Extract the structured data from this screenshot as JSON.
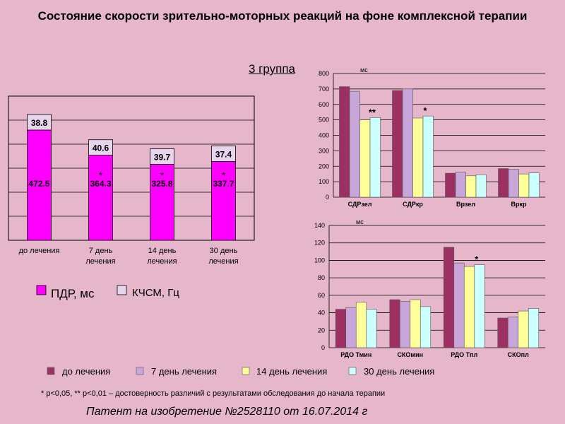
{
  "title": "Состояние скорости зрительно-моторных реакций на фоне комплексной терапии",
  "group_label": "3 группа",
  "footnote": "* p<0,05, ** p<0,01 – достоверность различий с результатами обследования до начала терапии",
  "patent": "Патент на изобретение №2528110 от 16.07.2014 г",
  "colors": {
    "pdr": "#ff00ff",
    "kchsm": "#e6d5ec",
    "before": "#9d3063",
    "day7": "#c9a6d9",
    "day14": "#ffff99",
    "day30": "#ccffff"
  },
  "chart_data": [
    {
      "id": "left",
      "type": "bar",
      "stacked": true,
      "categories": [
        "до лечения",
        "7 день лечения",
        "14 день лечения",
        "30 день лечения"
      ],
      "series": [
        {
          "name": "ПДР, мс",
          "values": [
            472.5,
            364.3,
            325.8,
            337.7
          ],
          "labels": [
            "472.5",
            "364.3",
            "325.8",
            "337.7"
          ],
          "marks": [
            "",
            "*",
            "*",
            "*"
          ]
        },
        {
          "name": "КЧСМ, Гц",
          "values": [
            38.8,
            40.6,
            39.7,
            37.4
          ],
          "labels": [
            "38.8",
            "40.6",
            "39.7",
            "37.4"
          ]
        }
      ],
      "grid": true,
      "legend": "bottom"
    },
    {
      "id": "top_right",
      "type": "bar",
      "unit": "мс",
      "categories": [
        "СДРзел",
        "СДРкр",
        "Врзел",
        "Вркр"
      ],
      "series": [
        {
          "name": "до лечения",
          "values": [
            715,
            690,
            155,
            185
          ]
        },
        {
          "name": "7 день лечения",
          "values": [
            685,
            700,
            162,
            180
          ]
        },
        {
          "name": "14 день лечения",
          "values": [
            500,
            512,
            138,
            150
          ]
        },
        {
          "name": "30 день лечения",
          "values": [
            515,
            525,
            145,
            157
          ]
        }
      ],
      "annotations": [
        {
          "category": "СДРзел",
          "text": "**"
        },
        {
          "category": "СДРкр",
          "text": "*"
        }
      ],
      "ylim": [
        0,
        800
      ],
      "yticks": [
        0,
        100,
        200,
        300,
        400,
        500,
        600,
        700,
        800
      ],
      "grid": true
    },
    {
      "id": "bottom_right",
      "type": "bar",
      "unit": "мс",
      "categories": [
        "РДО Тмин",
        "СКОмин",
        "РДО Тпл",
        "СКОпл"
      ],
      "series": [
        {
          "name": "до лечения",
          "values": [
            44,
            55,
            115,
            34
          ]
        },
        {
          "name": "7 день лечения",
          "values": [
            46,
            53,
            97,
            35
          ]
        },
        {
          "name": "14 день лечения",
          "values": [
            52,
            55,
            93,
            42
          ]
        },
        {
          "name": "30 день лечения",
          "values": [
            44,
            47,
            95,
            45
          ]
        }
      ],
      "annotations": [
        {
          "category": "РДО Тпл",
          "text": "*"
        }
      ],
      "ylim": [
        0,
        140
      ],
      "yticks": [
        0,
        20,
        40,
        60,
        80,
        100,
        120,
        140
      ],
      "grid": true
    }
  ],
  "right_legend": {
    "items": [
      "до лечения",
      "7 день лечения",
      "14 день лечения",
      "30 день лечения"
    ]
  }
}
